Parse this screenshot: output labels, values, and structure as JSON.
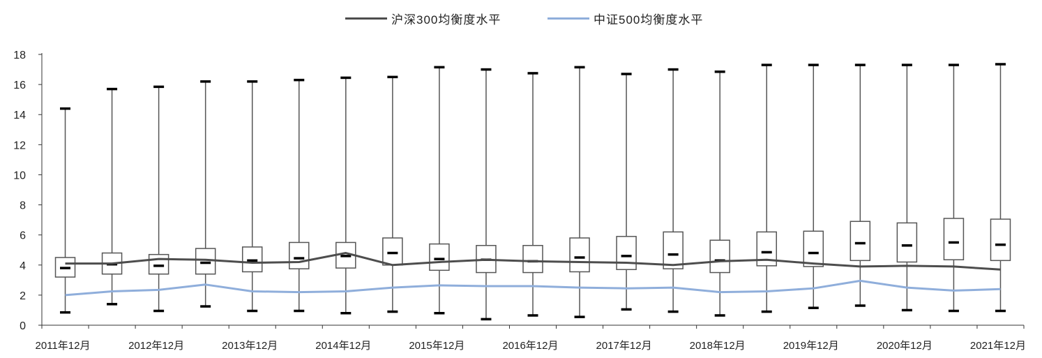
{
  "chart_data": {
    "type": "box",
    "title": "",
    "xlabel": "",
    "ylabel": "",
    "ylim": [
      0,
      18
    ],
    "yticks": [
      0,
      2,
      4,
      6,
      8,
      10,
      12,
      14,
      16,
      18
    ],
    "xtick_labels": [
      "2011年12月",
      "2012年12月",
      "2013年12月",
      "2014年12月",
      "2015年12月",
      "2016年12月",
      "2017年12月",
      "2018年12月",
      "2019年12月",
      "2020年12月",
      "2021年12月"
    ],
    "legend": {
      "position": "top-center"
    },
    "boxes": [
      {
        "min": 0.85,
        "q1": 3.2,
        "median": 3.8,
        "q3": 4.5,
        "max": 14.4
      },
      {
        "min": 1.4,
        "q1": 3.4,
        "median": 4.05,
        "q3": 4.8,
        "max": 15.7
      },
      {
        "min": 0.95,
        "q1": 3.4,
        "median": 3.95,
        "q3": 4.7,
        "max": 15.85
      },
      {
        "min": 1.25,
        "q1": 3.4,
        "median": 4.15,
        "q3": 5.1,
        "max": 16.2
      },
      {
        "min": 0.95,
        "q1": 3.55,
        "median": 4.3,
        "q3": 5.2,
        "max": 16.2
      },
      {
        "min": 0.95,
        "q1": 3.75,
        "median": 4.45,
        "q3": 5.5,
        "max": 16.3
      },
      {
        "min": 0.8,
        "q1": 3.8,
        "median": 4.6,
        "q3": 5.5,
        "max": 16.45
      },
      {
        "min": 0.9,
        "q1": 4.0,
        "median": 4.8,
        "q3": 5.8,
        "max": 16.5
      },
      {
        "min": 0.8,
        "q1": 3.65,
        "median": 4.4,
        "q3": 5.4,
        "max": 17.15
      },
      {
        "min": 0.4,
        "q1": 3.5,
        "median": 4.35,
        "q3": 5.3,
        "max": 17.0
      },
      {
        "min": 0.65,
        "q1": 3.5,
        "median": 4.25,
        "q3": 5.3,
        "max": 16.75
      },
      {
        "min": 0.55,
        "q1": 3.55,
        "median": 4.5,
        "q3": 5.8,
        "max": 17.15
      },
      {
        "min": 1.05,
        "q1": 3.7,
        "median": 4.6,
        "q3": 5.9,
        "max": 16.7
      },
      {
        "min": 0.9,
        "q1": 3.75,
        "median": 4.7,
        "q3": 6.2,
        "max": 17.0
      },
      {
        "min": 0.65,
        "q1": 3.5,
        "median": 4.3,
        "q3": 5.65,
        "max": 16.85
      },
      {
        "min": 0.9,
        "q1": 3.95,
        "median": 4.85,
        "q3": 6.2,
        "max": 17.3
      },
      {
        "min": 1.15,
        "q1": 3.9,
        "median": 4.8,
        "q3": 6.25,
        "max": 17.3
      },
      {
        "min": 1.3,
        "q1": 4.3,
        "median": 5.45,
        "q3": 6.9,
        "max": 17.3
      },
      {
        "min": 1.0,
        "q1": 4.2,
        "median": 5.3,
        "q3": 6.8,
        "max": 17.3
      },
      {
        "min": 0.95,
        "q1": 4.35,
        "median": 5.5,
        "q3": 7.1,
        "max": 17.3
      },
      {
        "min": 0.95,
        "q1": 4.3,
        "median": 5.35,
        "q3": 7.05,
        "max": 17.35
      }
    ],
    "series": [
      {
        "name": "沪深300均衡度水平",
        "color": "#4d4d4d",
        "values": [
          4.1,
          4.1,
          4.4,
          4.35,
          4.15,
          4.2,
          4.8,
          4.0,
          4.2,
          4.35,
          4.25,
          4.2,
          4.15,
          4.0,
          4.25,
          4.35,
          4.1,
          3.9,
          3.95,
          3.9,
          3.7
        ]
      },
      {
        "name": "中证500均衡度水平",
        "color": "#8faedb",
        "values": [
          2.0,
          2.25,
          2.35,
          2.7,
          2.25,
          2.2,
          2.25,
          2.5,
          2.65,
          2.6,
          2.6,
          2.5,
          2.45,
          2.5,
          2.2,
          2.25,
          2.45,
          2.95,
          2.5,
          2.3,
          2.4
        ]
      }
    ]
  }
}
